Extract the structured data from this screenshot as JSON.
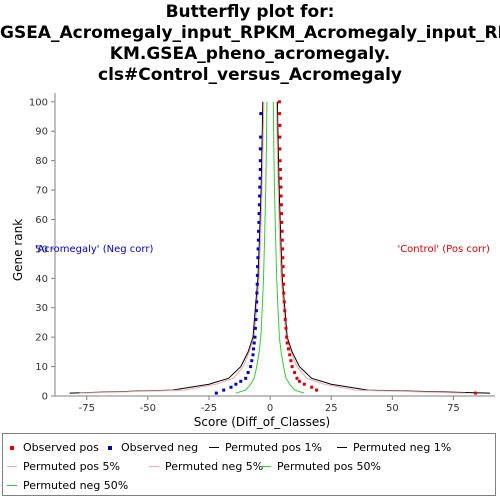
{
  "chart_data": {
    "type": "line",
    "title_lines": [
      "Butterfly plot for:",
      "GSEA_Acromegaly_input_RPKM_Acromegaly_input_RP",
      "KM.GSEA_pheno_acromegaly.",
      "cls#Control_versus_Acromegaly"
    ],
    "xlabel": "Score (Diff_of_Classes)",
    "ylabel": "Gene rank",
    "xlim": [
      -88,
      92
    ],
    "ylim": [
      0,
      103
    ],
    "xticks": [
      -75,
      -50,
      -25,
      0,
      25,
      50,
      75
    ],
    "yticks": [
      0,
      10,
      20,
      30,
      40,
      50,
      60,
      70,
      80,
      90,
      100
    ],
    "grid": false,
    "legend_position": "bottom",
    "annotations": [
      {
        "text": "'Acromegaly' (Neg corr)",
        "x": -72,
        "y": 50,
        "color": "#0000cc"
      },
      {
        "text": "'Control' (Pos corr)",
        "x": 71,
        "y": 50,
        "color": "#dd0000"
      }
    ],
    "series": [
      {
        "name": "Observed pos",
        "kind": "points",
        "color": "#dd0000",
        "x": [
          84,
          19,
          17,
          14,
          12,
          11,
          10,
          9,
          8.5,
          8,
          7.5,
          7,
          6.8,
          6.5,
          6.2,
          6,
          5.8,
          5.6,
          5.5,
          5.4,
          5.3,
          5.2,
          5.1,
          5,
          4.9,
          4.8,
          4.7,
          4.6,
          4.5,
          4.4,
          4.3,
          4.2,
          4.1,
          4,
          4,
          4,
          3.9,
          3.8
        ],
        "y": [
          1,
          2,
          3,
          4,
          5,
          6,
          8,
          10,
          12,
          14,
          16,
          18,
          20,
          23,
          26,
          29,
          32,
          35,
          38,
          41,
          44,
          47,
          50,
          53,
          56,
          59,
          62,
          65,
          68,
          71,
          74,
          77,
          80,
          84,
          88,
          92,
          96,
          100
        ]
      },
      {
        "name": "Observed neg",
        "kind": "points",
        "color": "#0000cc",
        "x": [
          -22,
          -19,
          -16,
          -14,
          -12,
          -10,
          -9,
          -8,
          -7.5,
          -7,
          -6.8,
          -6.5,
          -6.2,
          -6,
          -5.8,
          -5.6,
          -5.5,
          -5.4,
          -5.3,
          -5.2,
          -5.1,
          -5,
          -4.9,
          -4.8,
          -4.7,
          -4.6,
          -4.5,
          -4.4,
          -4.3,
          -4.2,
          -4.1,
          -4,
          -4,
          -4,
          -3.9,
          -3.8
        ],
        "y": [
          1,
          2,
          3,
          4,
          5,
          6,
          8,
          10,
          12,
          14,
          16,
          18,
          20,
          23,
          26,
          29,
          32,
          35,
          38,
          41,
          44,
          47,
          50,
          53,
          56,
          59,
          62,
          65,
          68,
          71,
          74,
          77,
          80,
          84,
          88,
          96
        ]
      },
      {
        "name": "Permuted pos 1%",
        "kind": "line",
        "color": "#000000",
        "x": [
          90,
          40,
          25,
          17,
          12,
          9,
          7,
          6,
          5,
          4.3,
          3.7,
          3.3,
          3
        ],
        "y": [
          1,
          2,
          4,
          6,
          10,
          15,
          20,
          30,
          40,
          55,
          70,
          85,
          100
        ]
      },
      {
        "name": "Permuted neg 1%",
        "kind": "line",
        "color": "#000000",
        "x": [
          -82,
          -40,
          -25,
          -17,
          -12,
          -9,
          -7,
          -6,
          -5,
          -4.3,
          -3.7,
          -3.3,
          -3
        ],
        "y": [
          1,
          2,
          4,
          6,
          10,
          15,
          20,
          30,
          40,
          55,
          70,
          85,
          100
        ]
      },
      {
        "name": "Permuted pos 5%",
        "kind": "line",
        "color": "#f0a8a8",
        "x": [
          80,
          35,
          22,
          15,
          11,
          8.5,
          6.5,
          5.5,
          4.5,
          3.8,
          3.3,
          2.9,
          2.6
        ],
        "y": [
          1,
          2,
          4,
          6,
          10,
          15,
          20,
          30,
          40,
          55,
          70,
          85,
          100
        ]
      },
      {
        "name": "Permuted neg 5%",
        "kind": "line",
        "color": "#f0a8a8",
        "x": [
          -78,
          -35,
          -22,
          -15,
          -11,
          -8.5,
          -6.5,
          -5.5,
          -4.5,
          -3.8,
          -3.3,
          -2.9,
          -2.6
        ],
        "y": [
          1,
          2,
          4,
          6,
          10,
          15,
          20,
          30,
          40,
          55,
          70,
          85,
          100
        ]
      },
      {
        "name": "Permuted pos 50%",
        "kind": "line",
        "color": "#33cc33",
        "x": [
          14,
          10,
          8,
          6.5,
          5.5,
          4.5,
          3.8,
          3.2,
          2.7,
          2.2,
          1.8,
          1.5,
          1.3
        ],
        "y": [
          1,
          2,
          4,
          6,
          10,
          15,
          20,
          30,
          40,
          55,
          70,
          85,
          100
        ]
      },
      {
        "name": "Permuted neg 50%",
        "kind": "line",
        "color": "#33cc33",
        "x": [
          -14,
          -10,
          -8,
          -6.5,
          -5.5,
          -4.5,
          -3.8,
          -3.2,
          -2.7,
          -2.2,
          -1.8,
          -1.5,
          -1.3
        ],
        "y": [
          1,
          2,
          4,
          6,
          10,
          15,
          20,
          30,
          40,
          55,
          70,
          85,
          100
        ]
      }
    ]
  }
}
